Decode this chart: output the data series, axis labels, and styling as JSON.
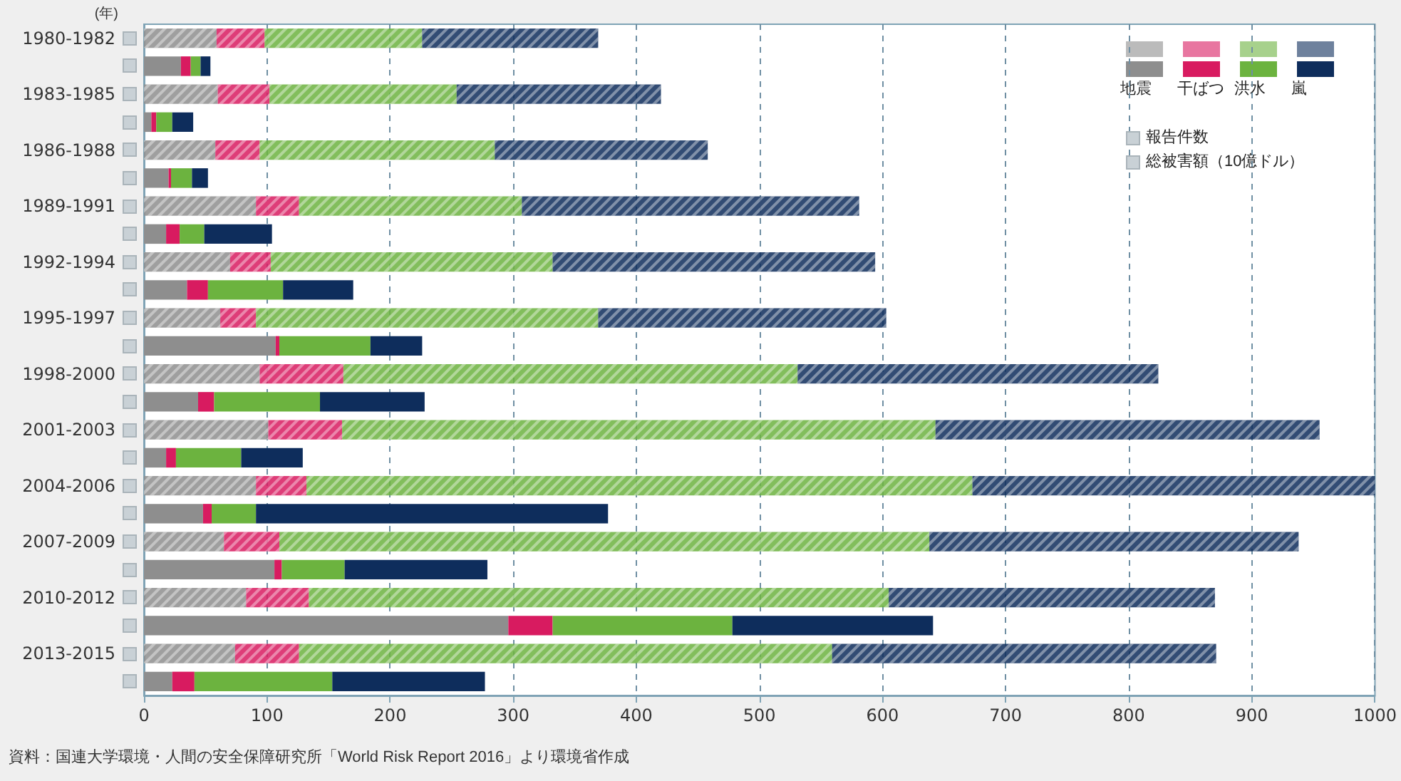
{
  "chart_data": {
    "type": "bar",
    "orientation": "horizontal",
    "stacked": true,
    "ylabel": "(年)",
    "categories": [
      "1980-1982",
      null,
      "1983-1985",
      null,
      "1986-1988",
      null,
      "1989-1991",
      null,
      "1992-1994",
      null,
      "1995-1997",
      null,
      "1998-2000",
      null,
      "2001-2003",
      null,
      "2004-2006",
      null,
      "2007-2009",
      null,
      "2010-2012",
      null,
      "2013-2015",
      null
    ],
    "series": [
      {
        "name": "地震",
        "color": "#8e8e8e",
        "values": [
          59,
          30,
          60,
          6,
          58,
          20,
          91,
          18,
          70,
          35,
          62,
          107,
          94,
          44,
          101,
          18,
          91,
          48,
          65,
          106,
          83,
          296,
          74,
          23
        ]
      },
      {
        "name": "干ばつ",
        "color": "#d81b60",
        "values": [
          39,
          8,
          42,
          4,
          36,
          2,
          35,
          11,
          33,
          17,
          29,
          3,
          68,
          13,
          60,
          8,
          41,
          7,
          45,
          6,
          51,
          36,
          52,
          18
        ]
      },
      {
        "name": "洪水",
        "color": "#6cb33f",
        "values": [
          128,
          8,
          152,
          13,
          191,
          17,
          181,
          20,
          229,
          61,
          278,
          74,
          369,
          86,
          482,
          53,
          541,
          36,
          528,
          51,
          471,
          146,
          433,
          112
        ]
      },
      {
        "name": "嵐",
        "color": "#0e2d5c",
        "values": [
          143,
          8,
          166,
          17,
          173,
          13,
          274,
          55,
          262,
          57,
          234,
          42,
          293,
          85,
          312,
          50,
          327,
          286,
          300,
          116,
          265,
          163,
          312,
          124
        ]
      }
    ],
    "xlim": [
      0,
      1000
    ],
    "xticks": [
      0,
      100,
      200,
      300,
      400,
      500,
      600,
      700,
      800,
      900,
      1000
    ],
    "grid": "x",
    "legend": "top right",
    "annotations": [
      "報告件数",
      "総被害額（10億ドル）",
      "資料：国連大学環境・人間の安全保障研究所「World Risk Report 2016」より環境省作成"
    ]
  }
}
